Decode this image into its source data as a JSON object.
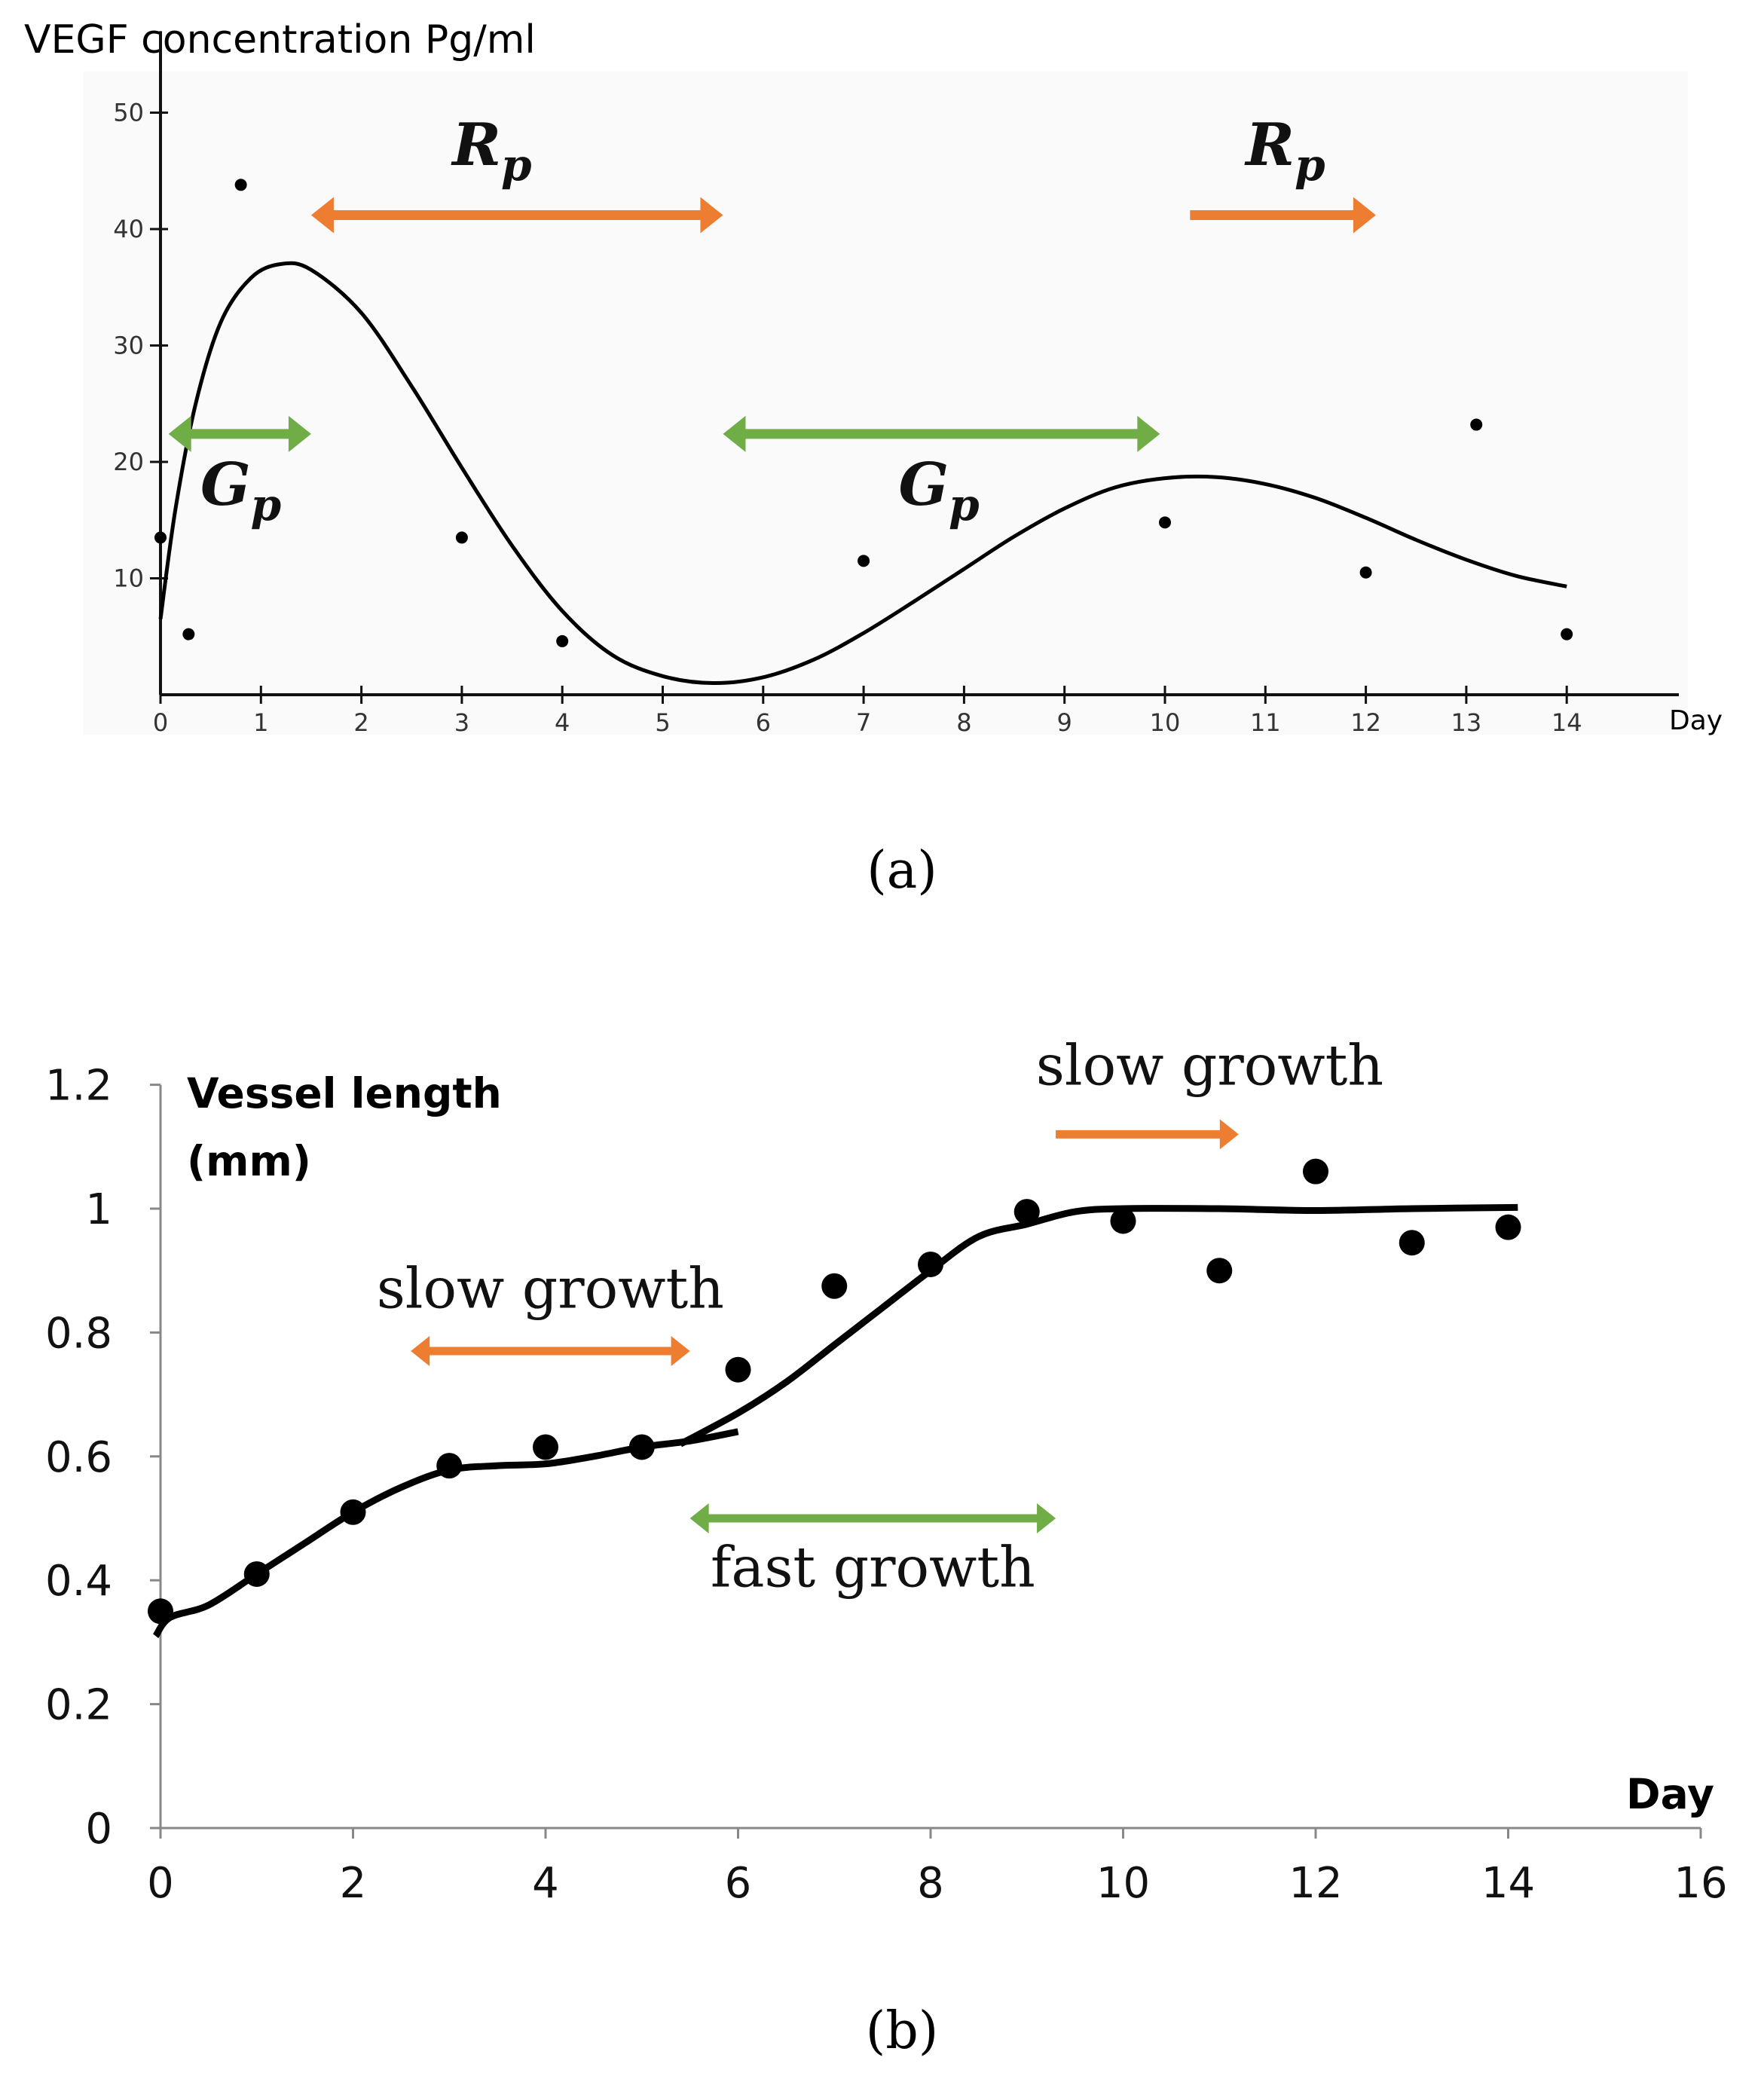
{
  "colors": {
    "axis": "#111111",
    "curve": "#000000",
    "point": "#000000",
    "orange": "#ed7d31",
    "green": "#70ad47",
    "plot_bg_a": "#fafafa"
  },
  "chart_data": [
    {
      "id": "a",
      "type": "scatter",
      "caption": "(a)",
      "ylabel": "VEGF concentration Pg/ml",
      "xlabel": "Day",
      "xlim": [
        0,
        15.5
      ],
      "ylim": [
        0,
        52
      ],
      "xticks": [
        0,
        1,
        2,
        3,
        4,
        5,
        6,
        7,
        8,
        9,
        10,
        11,
        12,
        13,
        14
      ],
      "yticks": [
        10,
        20,
        30,
        40,
        50
      ],
      "points": [
        {
          "x": 0,
          "y": 13.5
        },
        {
          "x": 0.28,
          "y": 5.2
        },
        {
          "x": 0.8,
          "y": 43.8
        },
        {
          "x": 3,
          "y": 13.5
        },
        {
          "x": 4,
          "y": 4.6
        },
        {
          "x": 7,
          "y": 11.5
        },
        {
          "x": 10,
          "y": 14.8
        },
        {
          "x": 12,
          "y": 10.5
        },
        {
          "x": 13.1,
          "y": 23.2
        },
        {
          "x": 14,
          "y": 5.2
        }
      ],
      "fit_curve": [
        [
          0,
          6.5
        ],
        [
          0.15,
          16
        ],
        [
          0.35,
          25
        ],
        [
          0.6,
          32
        ],
        [
          0.9,
          35.8
        ],
        [
          1.2,
          37
        ],
        [
          1.5,
          36.5
        ],
        [
          2,
          32.8
        ],
        [
          2.5,
          26.5
        ],
        [
          3,
          19.5
        ],
        [
          3.5,
          12.8
        ],
        [
          4,
          7.2
        ],
        [
          4.5,
          3.4
        ],
        [
          5,
          1.6
        ],
        [
          5.5,
          1
        ],
        [
          6,
          1.5
        ],
        [
          6.5,
          3
        ],
        [
          7,
          5.3
        ],
        [
          7.5,
          8
        ],
        [
          8,
          10.8
        ],
        [
          8.5,
          13.6
        ],
        [
          9,
          16
        ],
        [
          9.5,
          17.8
        ],
        [
          10,
          18.6
        ],
        [
          10.5,
          18.7
        ],
        [
          11,
          18.1
        ],
        [
          11.5,
          16.9
        ],
        [
          12,
          15.2
        ],
        [
          12.5,
          13.3
        ],
        [
          13,
          11.6
        ],
        [
          13.5,
          10.2
        ],
        [
          14,
          9.3
        ]
      ],
      "annotations": [
        {
          "label": "R",
          "sub": "p",
          "color": "orange",
          "x_from": 1.5,
          "x_to": 5.6,
          "y": 41.2,
          "dir": "both",
          "label_x": 3.3,
          "label_y": 45.5
        },
        {
          "label": "R",
          "sub": "p",
          "color": "orange",
          "x_from": 10.25,
          "x_to": 12.1,
          "y": 41.2,
          "dir": "right",
          "label_x": 11.2,
          "label_y": 45.5
        },
        {
          "label": "G",
          "sub": "p",
          "color": "green",
          "x_from": 0.08,
          "x_to": 1.5,
          "y": 22.4,
          "dir": "both",
          "label_x": 0.8,
          "label_y": 16.3
        },
        {
          "label": "G",
          "sub": "p",
          "color": "green",
          "x_from": 5.6,
          "x_to": 9.95,
          "y": 22.4,
          "dir": "both",
          "label_x": 7.75,
          "label_y": 16.3
        }
      ]
    },
    {
      "id": "b",
      "type": "scatter",
      "caption": "(b)",
      "ylabel_line1": "Vessel length",
      "ylabel_line2": "(mm)",
      "xlabel": "Day",
      "xlim": [
        0,
        16
      ],
      "ylim": [
        0,
        1.2
      ],
      "xticks": [
        "0",
        "2",
        "4",
        "6",
        "8",
        "10",
        "12",
        "14",
        "16"
      ],
      "yticks": [
        "0",
        "0.2",
        "0.4",
        "0.6",
        "0.8",
        "1",
        "1.2"
      ],
      "points": [
        {
          "x": 0,
          "y": 0.35
        },
        {
          "x": 1,
          "y": 0.41
        },
        {
          "x": 2,
          "y": 0.51
        },
        {
          "x": 3,
          "y": 0.585
        },
        {
          "x": 4,
          "y": 0.615
        },
        {
          "x": 5,
          "y": 0.615
        },
        {
          "x": 6,
          "y": 0.74
        },
        {
          "x": 7,
          "y": 0.875
        },
        {
          "x": 8,
          "y": 0.91
        },
        {
          "x": 9,
          "y": 0.995
        },
        {
          "x": 10,
          "y": 0.98
        },
        {
          "x": 11,
          "y": 0.9
        },
        {
          "x": 12,
          "y": 1.06
        },
        {
          "x": 13,
          "y": 0.945
        },
        {
          "x": 14,
          "y": 0.97
        }
      ],
      "fit_curve_1": [
        [
          -0.05,
          0.31
        ],
        [
          0.1,
          0.34
        ],
        [
          0.5,
          0.36
        ],
        [
          1,
          0.41
        ],
        [
          1.5,
          0.46
        ],
        [
          2,
          0.51
        ],
        [
          2.5,
          0.55
        ],
        [
          3,
          0.578
        ],
        [
          3.5,
          0.585
        ],
        [
          4,
          0.588
        ],
        [
          4.5,
          0.6
        ],
        [
          5,
          0.615
        ],
        [
          5.5,
          0.625
        ],
        [
          6,
          0.64
        ]
      ],
      "fit_curve_2": [
        [
          5.4,
          0.62
        ],
        [
          6,
          0.67
        ],
        [
          6.5,
          0.72
        ],
        [
          7,
          0.78
        ],
        [
          7.5,
          0.84
        ],
        [
          8,
          0.9
        ],
        [
          8.5,
          0.955
        ],
        [
          9,
          0.975
        ],
        [
          9.5,
          0.995
        ],
        [
          10,
          1.0
        ],
        [
          11,
          1.0
        ],
        [
          12,
          0.997
        ],
        [
          13,
          1.0
        ],
        [
          14.1,
          1.002
        ]
      ],
      "annotations": [
        {
          "text": "slow growth",
          "color": "orange",
          "x_from": 2.6,
          "x_to": 5.5,
          "y": 0.77,
          "dir": "both",
          "label_x": 4.05,
          "label_y": 0.84
        },
        {
          "text": "fast growth",
          "color": "green",
          "x_from": 5.5,
          "x_to": 9.3,
          "y": 0.5,
          "dir": "both",
          "label_x": 7.4,
          "label_y": 0.39
        },
        {
          "text": "slow growth",
          "color": "orange",
          "x_from": 9.3,
          "x_to": 11.2,
          "y": 1.12,
          "dir": "right",
          "label_x": 10.9,
          "label_y": 1.2
        }
      ]
    }
  ]
}
